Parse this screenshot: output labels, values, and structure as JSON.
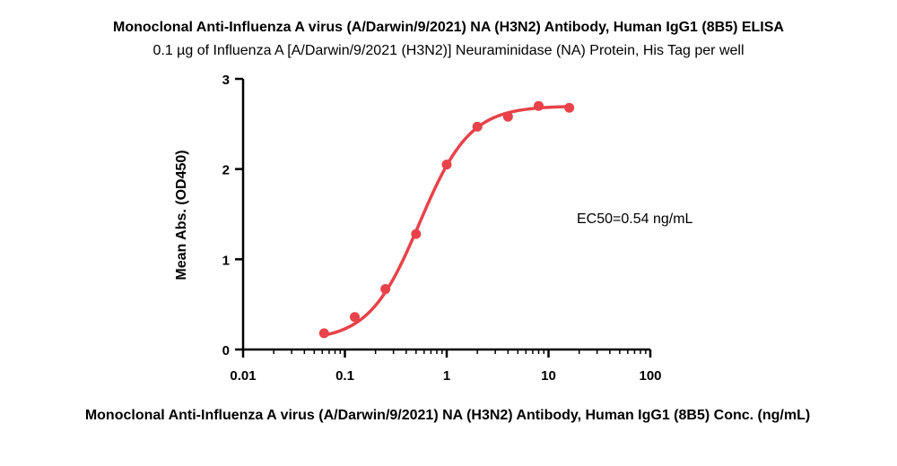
{
  "chart_data": {
    "type": "scatter",
    "title": "Monoclonal Anti-Influenza A virus (A/Darwin/9/2021) NA (H3N2) Antibody, Human IgG1 (8B5) ELISA",
    "subtitle": "0.1 µg of Influenza A [A/Darwin/9/2021 (H3N2)] Neuraminidase (NA) Protein, His Tag per well",
    "xlabel": "Monoclonal Anti-Influenza A virus (A/Darwin/9/2021) NA (H3N2) Antibody, Human IgG1 (8B5) Conc. (ng/mL)",
    "ylabel": "Mean Abs. (OD450)",
    "x_scale": "log",
    "xlim": [
      0.01,
      100
    ],
    "ylim": [
      0,
      3
    ],
    "x_ticks": [
      "0.01",
      "0.1",
      "1",
      "10",
      "100"
    ],
    "y_ticks": [
      "0",
      "1",
      "2",
      "3"
    ],
    "grid": false,
    "color": "#e8424a",
    "annotation": "EC50=0.54 ng/mL",
    "series": [
      {
        "x": [
          0.0625,
          0.125,
          0.25,
          0.5,
          1,
          2,
          4,
          8,
          16
        ],
        "y": [
          0.18,
          0.36,
          0.67,
          1.28,
          2.05,
          2.47,
          2.58,
          2.7,
          2.68
        ]
      }
    ],
    "fit": {
      "type": "4PL",
      "bottom": 0.1,
      "top": 2.7,
      "ec50": 0.54,
      "hill": 1.75
    }
  }
}
